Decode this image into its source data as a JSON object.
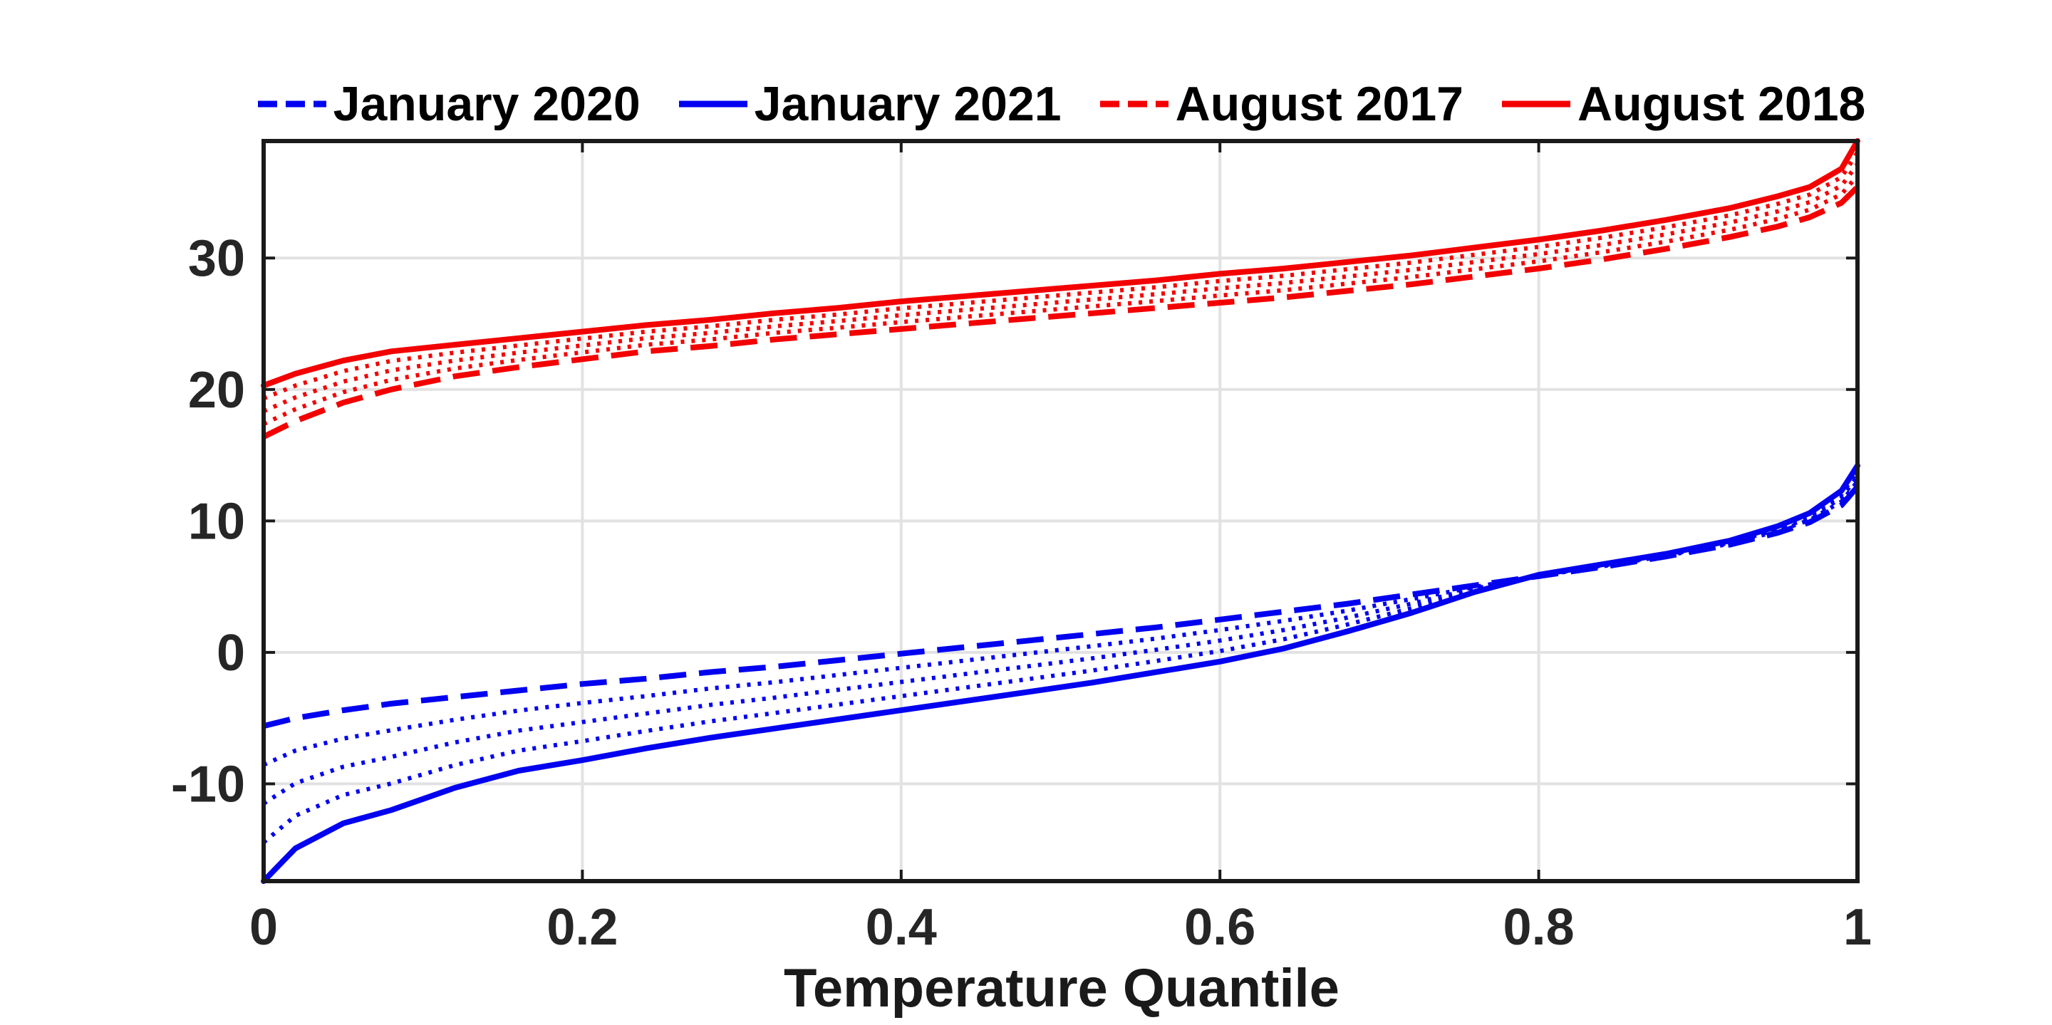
{
  "page": {
    "background": "#ffffff"
  },
  "axes": {
    "xlabel": "Temperature Quantile",
    "grid_color": "#e2e2e2",
    "box_color": "#1a1a1a",
    "tick_label_color": "#262626"
  },
  "chart_data": {
    "type": "line",
    "title": "",
    "xlabel": "Temperature Quantile",
    "ylabel": "",
    "xlim": [
      0,
      1
    ],
    "ylim": [
      -17.4,
      38.9
    ],
    "grid": true,
    "legend_position": "top-center",
    "xticks": {
      "values": [
        0,
        0.2,
        0.4,
        0.6,
        0.8,
        1
      ],
      "labels": [
        "0",
        "0.2",
        "0.4",
        "0.6",
        "0.8",
        "1"
      ]
    },
    "yticks": {
      "values": [
        -10,
        0,
        10,
        20,
        30
      ],
      "labels": [
        "-10",
        "0",
        "10",
        "20",
        "30"
      ]
    },
    "x_grid": [
      0,
      0.02,
      0.05,
      0.08,
      0.12,
      0.16,
      0.2,
      0.24,
      0.28,
      0.32,
      0.36,
      0.4,
      0.44,
      0.48,
      0.52,
      0.56,
      0.6,
      0.64,
      0.68,
      0.72,
      0.76,
      0.8,
      0.84,
      0.88,
      0.92,
      0.95,
      0.97,
      0.99,
      1.0
    ],
    "series": [
      {
        "name": "January 2020",
        "color": "#0202f0",
        "style": "dashed",
        "y": [
          -5.6,
          -5.0,
          -4.4,
          -3.9,
          -3.4,
          -2.9,
          -2.4,
          -2.0,
          -1.5,
          -1.1,
          -0.6,
          -0.1,
          0.4,
          0.9,
          1.4,
          1.9,
          2.5,
          3.1,
          3.7,
          4.4,
          5.1,
          5.8,
          6.5,
          7.3,
          8.2,
          9.1,
          9.9,
          11.2,
          12.6
        ]
      },
      {
        "name": "January 2021",
        "color": "#0202f0",
        "style": "solid",
        "y": [
          -17.4,
          -14.9,
          -13.0,
          -12.0,
          -10.3,
          -9.0,
          -8.2,
          -7.3,
          -6.5,
          -5.8,
          -5.1,
          -4.4,
          -3.7,
          -3.0,
          -2.3,
          -1.5,
          -0.7,
          0.3,
          1.6,
          3.0,
          4.6,
          5.9,
          6.7,
          7.5,
          8.5,
          9.6,
          10.6,
          12.3,
          14.2
        ]
      },
      {
        "name": "August 2017",
        "color": "#f30000",
        "style": "dashed",
        "y": [
          16.4,
          17.6,
          19.0,
          20.0,
          21.0,
          21.7,
          22.3,
          22.9,
          23.3,
          23.8,
          24.2,
          24.6,
          25.0,
          25.4,
          25.8,
          26.2,
          26.6,
          27.0,
          27.5,
          28.0,
          28.6,
          29.2,
          29.9,
          30.7,
          31.6,
          32.4,
          33.1,
          34.2,
          35.4
        ]
      },
      {
        "name": "August 2018",
        "color": "#f30000",
        "style": "solid",
        "y": [
          20.3,
          21.2,
          22.2,
          22.9,
          23.4,
          23.9,
          24.4,
          24.9,
          25.3,
          25.8,
          26.2,
          26.7,
          27.1,
          27.5,
          27.9,
          28.3,
          28.8,
          29.2,
          29.7,
          30.2,
          30.8,
          31.4,
          32.1,
          32.9,
          33.8,
          34.7,
          35.4,
          36.8,
          38.9
        ]
      }
    ],
    "interpolated_bands": [
      {
        "between": [
          "January 2020",
          "January 2021"
        ],
        "style": "dotted",
        "color": "#0202f0",
        "weights": [
          0.25,
          0.5,
          0.75
        ]
      },
      {
        "between": [
          "August 2017",
          "August 2018"
        ],
        "style": "dotted",
        "color": "#f30000",
        "weights": [
          0.25,
          0.5,
          0.75
        ]
      }
    ]
  }
}
